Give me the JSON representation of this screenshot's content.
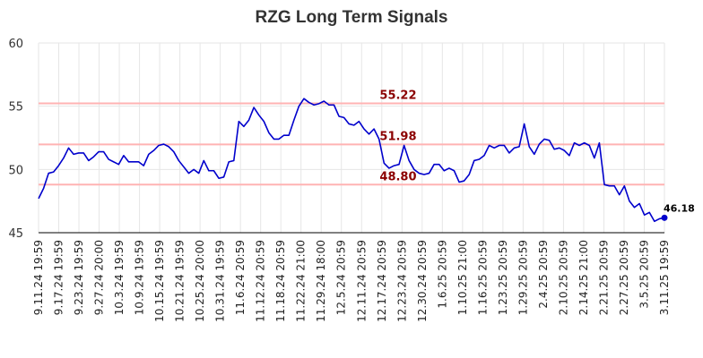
{
  "chart_data": {
    "type": "line",
    "title": "RZG Long Term Signals",
    "xlabel": "",
    "ylabel": "",
    "ylim": [
      45,
      60
    ],
    "yticks": [
      45,
      50,
      55,
      60
    ],
    "grid": true,
    "xtick_labels": [
      "9.11.24 19:59",
      "9.17.24 19:59",
      "9.23.24 19:59",
      "9.27.24 20:00",
      "10.3.24 19:59",
      "10.9.24 19:59",
      "10.15.24 19:59",
      "10.21.24 19:59",
      "10.25.24 20:00",
      "10.31.24 19:59",
      "11.6.24 20:59",
      "11.12.24 20:59",
      "11.18.24 20:59",
      "11.22.24 21:00",
      "11.29.24 18:00",
      "12.5.24 20:59",
      "12.11.24 20:59",
      "12.17.24 20:59",
      "12.23.24 20:59",
      "12.30.24 20:59",
      "1.6.25 20:59",
      "1.10.25 21:00",
      "1.16.25 20:59",
      "1.23.25 20:59",
      "1.29.25 20:59",
      "2.4.25 20:59",
      "2.10.25 20:59",
      "2.14.25 21:00",
      "2.21.25 20:59",
      "2.27.25 20:59",
      "3.5.25 20:59",
      "3.11.25 19:59"
    ],
    "reference_lines": [
      {
        "value": 55.22,
        "label": "55.22",
        "label_x": 0.545
      },
      {
        "value": 51.98,
        "label": "51.98",
        "label_x": 0.545
      },
      {
        "value": 48.8,
        "label": "48.80",
        "label_x": 0.545
      }
    ],
    "last_value_label": "46.18",
    "colors": {
      "line": "#0000cc",
      "reference": "#ffb3b3",
      "reference_label": "#8b0000",
      "grid": "#e6e6e6",
      "axis": "#000000"
    },
    "series": [
      {
        "values": [
          47.7,
          48.5,
          49.7,
          49.8,
          50.3,
          50.9,
          51.7,
          51.2,
          51.3,
          51.3,
          50.7,
          51.0,
          51.4,
          51.4,
          50.8,
          50.6,
          50.4,
          51.1,
          50.6,
          50.6,
          50.6,
          50.3,
          51.2,
          51.5,
          51.9,
          52.0,
          51.8,
          51.4,
          50.7,
          50.2,
          49.7,
          50.0,
          49.7,
          50.7,
          49.9,
          49.9,
          49.3,
          49.4,
          50.6,
          50.7,
          53.8,
          53.4,
          53.9,
          54.9,
          54.3,
          53.8,
          52.9,
          52.4,
          52.4,
          52.7,
          52.7,
          53.9,
          55.0,
          55.6,
          55.3,
          55.1,
          55.2,
          55.4,
          55.1,
          55.1,
          54.2,
          54.1,
          53.6,
          53.5,
          53.8,
          53.2,
          52.8,
          53.2,
          52.4,
          50.5,
          50.1,
          50.3,
          50.4,
          51.9,
          50.7,
          50.0,
          49.7,
          49.6,
          49.7,
          50.4,
          50.4,
          49.9,
          50.1,
          49.9,
          49.0,
          49.1,
          49.6,
          50.7,
          50.8,
          51.1,
          51.9,
          51.7,
          51.9,
          51.9,
          51.3,
          51.7,
          51.8,
          53.6,
          51.8,
          51.2,
          52.0,
          52.4,
          52.3,
          51.6,
          51.7,
          51.5,
          51.1,
          52.1,
          51.9,
          52.1,
          51.9,
          50.9,
          52.1,
          48.8,
          48.7,
          48.7,
          48.0,
          48.7,
          47.5,
          47.0,
          47.3,
          46.4,
          46.6,
          45.9,
          46.1,
          46.18
        ]
      }
    ]
  }
}
